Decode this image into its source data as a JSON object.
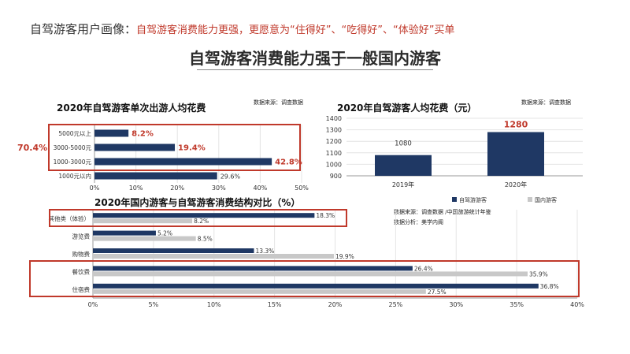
{
  "header": {
    "prefix": "自驾游客用户画像：",
    "highlight": "自驾游客消费能力更强，更愿意为“住得好”、“吃得好”、“体验好”买单"
  },
  "main_title": "自驾游客消费能力强于一般国内游客",
  "colors": {
    "navy": "#1f3864",
    "gray": "#c8c8c8",
    "highlight": "#c0392b"
  },
  "chart_data": [
    {
      "type": "bar",
      "orientation": "horizontal",
      "title": "2020年自驾游客单次出游人均花费",
      "source": "数据来源：调查数据",
      "categories": [
        "5000元以上",
        "3000-5000元",
        "1000-3000元",
        "1000元以内"
      ],
      "values": [
        8.2,
        19.4,
        42.8,
        29.6
      ],
      "value_labels": [
        "8.2%",
        "19.4%",
        "42.8%",
        "29.6%"
      ],
      "highlighted": [
        true,
        true,
        true,
        false
      ],
      "xlim": [
        0,
        50
      ],
      "xticks": [
        "0%",
        "10%",
        "20%",
        "30%",
        "40%",
        "50%"
      ],
      "bracket_label": "70.4%"
    },
    {
      "type": "bar",
      "title": "2020年自驾游客人均花费（元）",
      "source": "数据来源：调查数据",
      "categories": [
        "2019年",
        "2020年"
      ],
      "values": [
        1080,
        1280
      ],
      "value_labels": [
        "1080",
        "1280"
      ],
      "ylim": [
        900,
        1400
      ],
      "yticks": [
        "900",
        "1000",
        "1100",
        "1200",
        "1300",
        "1400"
      ],
      "legend": [
        "自驾游游客",
        "国内游客"
      ],
      "legend_position": "bottom"
    },
    {
      "type": "bar",
      "orientation": "horizontal",
      "title": "2020年国内游客与自驾游客消费结构对比（%）",
      "source": "数据来源：调查数据 /中国旅游统计年鉴",
      "analysis": "数据分析：美学内阁",
      "categories": [
        "其他类（体验）",
        "游览费",
        "购物费",
        "餐饮费",
        "住宿费"
      ],
      "series": [
        {
          "name": "自驾游游客",
          "values": [
            18.3,
            5.2,
            13.3,
            26.4,
            36.8
          ],
          "labels": [
            "18.3%",
            "5.2%",
            "13.3%",
            "26.4%",
            "36.8%"
          ]
        },
        {
          "name": "国内游客",
          "values": [
            8.2,
            8.5,
            19.9,
            35.9,
            27.5
          ],
          "labels": [
            "8.2%",
            "8.5%",
            "19.9%",
            "35.9%",
            "27.5%"
          ]
        }
      ],
      "xlim": [
        0,
        40
      ],
      "xticks": [
        "0%",
        "5%",
        "10%",
        "15%",
        "20%",
        "25%",
        "30%",
        "35%",
        "40%"
      ]
    }
  ]
}
